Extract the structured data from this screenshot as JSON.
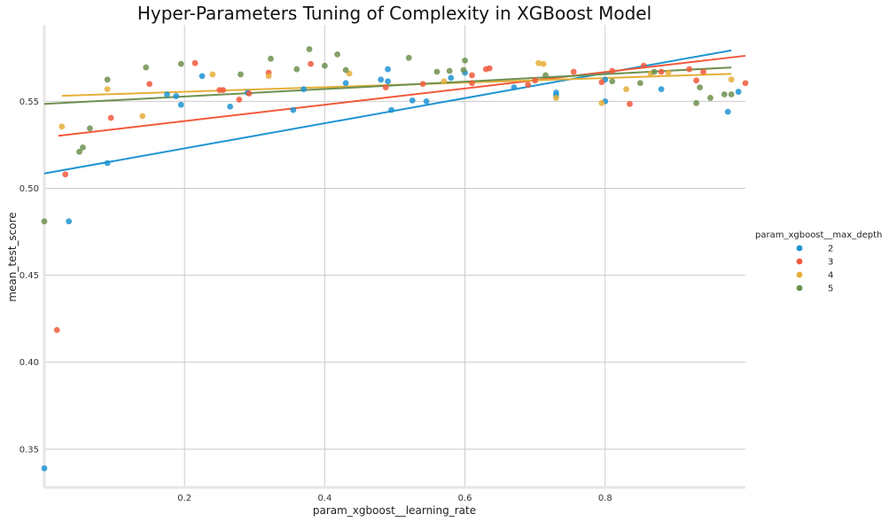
{
  "chart_data": {
    "type": "scatter",
    "title": "Hyper-Parameters Tuning of Complexity in XGBoost Model",
    "xlabel": "param_xgboost__learning_rate",
    "ylabel": "mean_test_score",
    "xlim": [
      0.0,
      1.0
    ],
    "ylim": [
      0.328,
      0.594
    ],
    "xticks": [
      0.2,
      0.4,
      0.6,
      0.8
    ],
    "xtick_labels": [
      "0.2",
      "0.4",
      "0.6",
      "0.8"
    ],
    "yticks": [
      0.35,
      0.4,
      0.45,
      0.5,
      0.55
    ],
    "ytick_labels": [
      "0.35",
      "0.40",
      "0.45",
      "0.50",
      "0.55"
    ],
    "grid": true,
    "legend": {
      "title": "param_xgboost__max_depth",
      "placement": "right"
    },
    "series": [
      {
        "name": "2",
        "color": "#1f94d2",
        "trend": [
          [
            0.0,
            0.5085
          ],
          [
            0.98,
            0.5793
          ]
        ],
        "points": [
          [
            0.0,
            0.339
          ],
          [
            0.035,
            0.481
          ],
          [
            0.09,
            0.5145
          ],
          [
            0.175,
            0.554
          ],
          [
            0.188,
            0.553
          ],
          [
            0.195,
            0.548
          ],
          [
            0.225,
            0.5645
          ],
          [
            0.265,
            0.547
          ],
          [
            0.29,
            0.555
          ],
          [
            0.355,
            0.545
          ],
          [
            0.37,
            0.557
          ],
          [
            0.43,
            0.5605
          ],
          [
            0.48,
            0.5625
          ],
          [
            0.49,
            0.5685
          ],
          [
            0.49,
            0.5615
          ],
          [
            0.495,
            0.545
          ],
          [
            0.525,
            0.5505
          ],
          [
            0.545,
            0.55
          ],
          [
            0.58,
            0.5635
          ],
          [
            0.6,
            0.5665
          ],
          [
            0.67,
            0.558
          ],
          [
            0.73,
            0.5535
          ],
          [
            0.73,
            0.555
          ],
          [
            0.8,
            0.55
          ],
          [
            0.8,
            0.5625
          ],
          [
            0.88,
            0.557
          ],
          [
            0.975,
            0.544
          ],
          [
            0.99,
            0.5555
          ]
        ]
      },
      {
        "name": "3",
        "color": "#f1593c",
        "trend": [
          [
            0.02,
            0.5302
          ],
          [
            1.0,
            0.5762
          ]
        ],
        "points": [
          [
            0.018,
            0.4185
          ],
          [
            0.03,
            0.508
          ],
          [
            0.095,
            0.5405
          ],
          [
            0.15,
            0.56
          ],
          [
            0.215,
            0.572
          ],
          [
            0.25,
            0.5565
          ],
          [
            0.255,
            0.5565
          ],
          [
            0.278,
            0.551
          ],
          [
            0.292,
            0.5545
          ],
          [
            0.32,
            0.5665
          ],
          [
            0.38,
            0.5715
          ],
          [
            0.487,
            0.558
          ],
          [
            0.54,
            0.56
          ],
          [
            0.61,
            0.565
          ],
          [
            0.61,
            0.5605
          ],
          [
            0.63,
            0.5685
          ],
          [
            0.635,
            0.569
          ],
          [
            0.69,
            0.5595
          ],
          [
            0.7,
            0.562
          ],
          [
            0.755,
            0.567
          ],
          [
            0.795,
            0.561
          ],
          [
            0.81,
            0.5675
          ],
          [
            0.835,
            0.5485
          ],
          [
            0.855,
            0.5705
          ],
          [
            0.88,
            0.567
          ],
          [
            0.92,
            0.5685
          ],
          [
            0.93,
            0.562
          ],
          [
            0.94,
            0.567
          ],
          [
            1.0,
            0.5605
          ]
        ]
      },
      {
        "name": "4",
        "color": "#e5ae38",
        "trend": [
          [
            0.025,
            0.5532
          ],
          [
            0.98,
            0.5658
          ]
        ],
        "points": [
          [
            0.025,
            0.5355
          ],
          [
            0.09,
            0.557
          ],
          [
            0.14,
            0.5415
          ],
          [
            0.24,
            0.5655
          ],
          [
            0.32,
            0.5645
          ],
          [
            0.435,
            0.566
          ],
          [
            0.57,
            0.5615
          ],
          [
            0.705,
            0.572
          ],
          [
            0.712,
            0.5715
          ],
          [
            0.73,
            0.552
          ],
          [
            0.795,
            0.549
          ],
          [
            0.83,
            0.557
          ],
          [
            0.865,
            0.566
          ],
          [
            0.89,
            0.5665
          ],
          [
            0.98,
            0.5625
          ]
        ]
      },
      {
        "name": "5",
        "color": "#6d904f",
        "trend": [
          [
            0.0,
            0.5485
          ],
          [
            0.98,
            0.5695
          ]
        ],
        "points": [
          [
            0.0,
            0.481
          ],
          [
            0.05,
            0.521
          ],
          [
            0.055,
            0.5235
          ],
          [
            0.065,
            0.5345
          ],
          [
            0.09,
            0.5625
          ],
          [
            0.145,
            0.5695
          ],
          [
            0.195,
            0.5715
          ],
          [
            0.28,
            0.5655
          ],
          [
            0.323,
            0.5745
          ],
          [
            0.36,
            0.5685
          ],
          [
            0.378,
            0.58
          ],
          [
            0.4,
            0.5705
          ],
          [
            0.418,
            0.577
          ],
          [
            0.43,
            0.568
          ],
          [
            0.52,
            0.575
          ],
          [
            0.56,
            0.567
          ],
          [
            0.578,
            0.5675
          ],
          [
            0.598,
            0.568
          ],
          [
            0.6,
            0.5735
          ],
          [
            0.715,
            0.565
          ],
          [
            0.81,
            0.5615
          ],
          [
            0.85,
            0.5605
          ],
          [
            0.87,
            0.567
          ],
          [
            0.93,
            0.549
          ],
          [
            0.935,
            0.558
          ],
          [
            0.95,
            0.552
          ],
          [
            0.97,
            0.554
          ],
          [
            0.98,
            0.554
          ]
        ]
      }
    ]
  }
}
